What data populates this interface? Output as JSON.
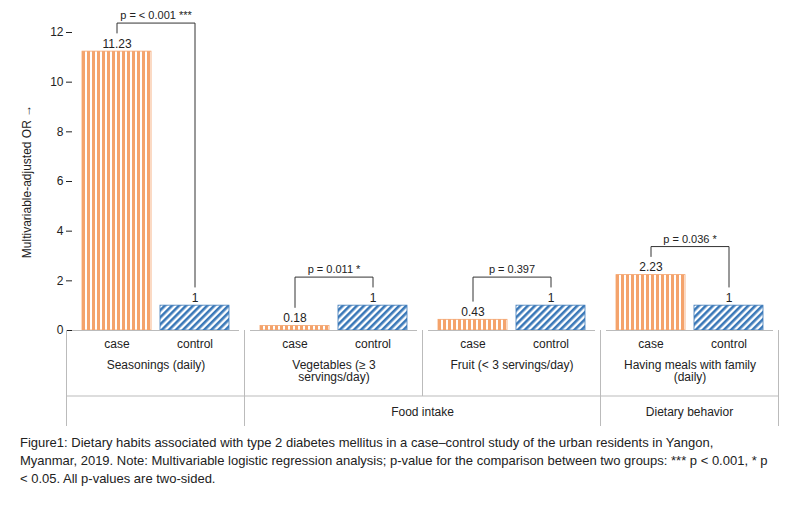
{
  "chart_data": {
    "type": "bar",
    "ylabel": "Multivariable-adjusted OR",
    "categories": [
      "Seasonings (daily)",
      "Vegetables (≥ 3 servings/day)",
      "Fruit (< 3 servings/day)",
      "Having meals with family (daily)"
    ],
    "category_groups": [
      {
        "label": "Food intake",
        "categories": [
          "Vegetables (≥ 3 servings/day)",
          "Fruit (< 3 servings/day)"
        ]
      },
      {
        "label": "Dietary behavior",
        "categories": [
          "Having meals with family (daily)"
        ]
      }
    ],
    "series": [
      {
        "name": "case",
        "color": "#F4A36C",
        "values": [
          11.23,
          0.18,
          0.43,
          2.23
        ]
      },
      {
        "name": "control",
        "color": "#3A78B8",
        "values": [
          1,
          1,
          1,
          1
        ]
      }
    ],
    "p_value_labels": [
      "p = < 0.001 ***",
      "p = 0.011 *",
      "p = 0.397",
      "p = 0.036 *"
    ],
    "ylim": [
      0,
      12
    ],
    "yticks": [
      0,
      2,
      4,
      6,
      8,
      10,
      12
    ],
    "data_labels": true,
    "caption": "Figure1: Dietary habits associated with type 2 diabetes mellitus in a case–control study of the urban residents in Yangon, Myanmar, 2019. Note: Multivariable logistic regression analysis; p-value for the comparison between two groups: *** p < 0.001, * p < 0.05. All p-values are two-sided."
  }
}
